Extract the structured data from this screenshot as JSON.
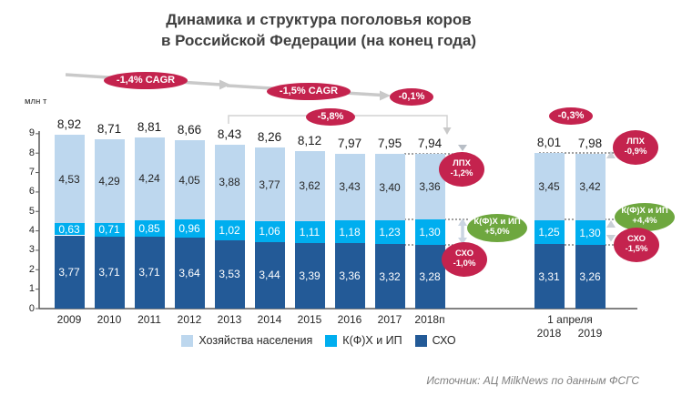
{
  "title": {
    "line1": "Динамика и структура поголовья коров",
    "line2": "в Российской Федерации (на конец года)"
  },
  "source": "Источник: АЦ MilkNews по данным ФСГС",
  "colors": {
    "household": "#BDD7EE",
    "kfh": "#00AEEF",
    "sho": "#235A97",
    "red_badge": "#C4234E",
    "green_badge": "#6EA73F",
    "arrow_gray": "#C9C9C9",
    "axis": "#595959"
  },
  "legend": {
    "items": [
      {
        "label": "Хозяйства населения",
        "color_key": "household"
      },
      {
        "label": "К(Ф)Х и ИП",
        "color_key": "kfh"
      },
      {
        "label": "СХО",
        "color_key": "sho"
      }
    ]
  },
  "chart_data": {
    "type": "bar",
    "stacked": true,
    "title": "Динамика и структура поголовья коров в Российской Федерации (на конец года)",
    "ylabel": "млн т",
    "ylim": [
      0,
      9
    ],
    "y_ticks": [
      0,
      1,
      2,
      3,
      4,
      5,
      6,
      7,
      8,
      9
    ],
    "categories": [
      "2009",
      "2010",
      "2011",
      "2012",
      "2013",
      "2014",
      "2015",
      "2016",
      "2017",
      "2018п",
      "2018",
      "2019"
    ],
    "group2_label": "1 апреля",
    "series": [
      {
        "name": "СХО",
        "color_key": "sho",
        "values": [
          3.77,
          3.71,
          3.71,
          3.64,
          3.53,
          3.44,
          3.39,
          3.36,
          3.32,
          3.28,
          3.31,
          3.26
        ]
      },
      {
        "name": "К(Ф)Х и ИП",
        "color_key": "kfh",
        "values": [
          0.63,
          0.71,
          0.85,
          0.96,
          1.02,
          1.06,
          1.11,
          1.18,
          1.23,
          1.3,
          1.25,
          1.3
        ]
      },
      {
        "name": "Хозяйства населения",
        "color_key": "household",
        "values": [
          4.53,
          4.29,
          4.24,
          4.05,
          3.88,
          3.77,
          3.62,
          3.43,
          3.4,
          3.36,
          3.45,
          3.42
        ]
      }
    ],
    "totals": [
      8.92,
      8.71,
      8.81,
      8.66,
      8.43,
      8.26,
      8.12,
      7.97,
      7.95,
      7.94,
      8.01,
      7.98
    ],
    "annotations": [
      {
        "id": "cagr1",
        "lines": [
          "-1,4% CAGR"
        ],
        "style": "red",
        "shape": "pill"
      },
      {
        "id": "cagr2",
        "lines": [
          "-1,5% CAGR"
        ],
        "style": "red",
        "shape": "pill"
      },
      {
        "id": "pct01",
        "lines": [
          "-0,1%"
        ],
        "style": "red",
        "shape": "pill"
      },
      {
        "id": "pct58",
        "lines": [
          "-5,8%"
        ],
        "style": "red",
        "shape": "pill"
      },
      {
        "id": "pct03",
        "lines": [
          "-0,3%"
        ],
        "style": "red",
        "shape": "pill"
      },
      {
        "id": "lph_left",
        "lines": [
          "ЛПХ",
          "-1,2%"
        ],
        "style": "red",
        "shape": "oval"
      },
      {
        "id": "kfh_left",
        "lines": [
          "К(Ф)Х и ИП",
          "+5,0%"
        ],
        "style": "green",
        "shape": "oval"
      },
      {
        "id": "sho_left",
        "lines": [
          "СХО",
          "-1,0%"
        ],
        "style": "red",
        "shape": "oval"
      },
      {
        "id": "lph_right",
        "lines": [
          "ЛПХ",
          "-0,9%"
        ],
        "style": "red",
        "shape": "oval"
      },
      {
        "id": "kfh_right",
        "lines": [
          "К(Ф)Х и ИП",
          "+4,4%"
        ],
        "style": "green",
        "shape": "oval"
      },
      {
        "id": "sho_right",
        "lines": [
          "СХО",
          "-1,5%"
        ],
        "style": "red",
        "shape": "oval"
      }
    ]
  }
}
